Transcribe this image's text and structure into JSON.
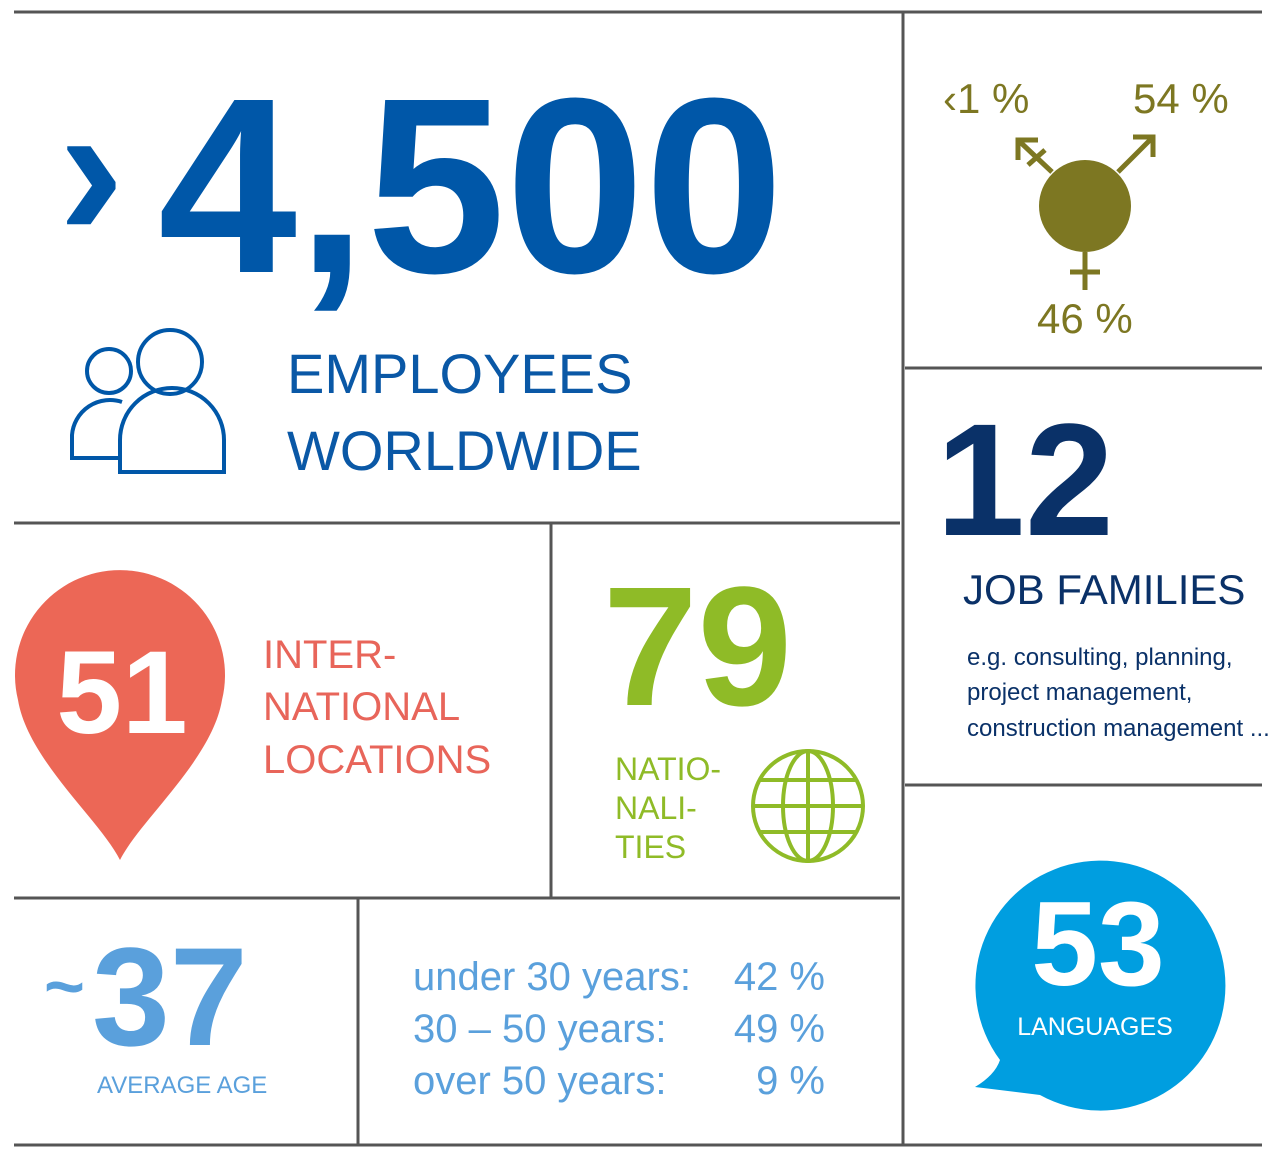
{
  "employees": {
    "prefix": "›",
    "number": "4,500",
    "label": [
      "EMPLOYEES",
      "WORLDWIDE"
    ]
  },
  "gender": {
    "other": "‹1 %",
    "male": "54 %",
    "female": "46 %"
  },
  "job_families": {
    "number": "12",
    "label": "JOB FAMILIES",
    "description": [
      "e.g. consulting, planning,",
      "project management,",
      "construction management ..."
    ]
  },
  "locations": {
    "number": "51",
    "label": [
      "INTER-",
      "NATIONAL",
      "LOCATIONS"
    ]
  },
  "nationalities": {
    "number": "79",
    "label": [
      "NATIO-",
      "NALI-",
      "TIES"
    ]
  },
  "languages": {
    "number": "53",
    "label": "LANGUAGES"
  },
  "age": {
    "prefix": "~",
    "number": "37",
    "label": "AVERAGE AGE",
    "groups": [
      [
        "under 30 years:",
        "42 %"
      ],
      [
        "30 – 50 years:",
        "49 %"
      ],
      [
        "over 50 years:",
        "9 %"
      ]
    ]
  }
}
